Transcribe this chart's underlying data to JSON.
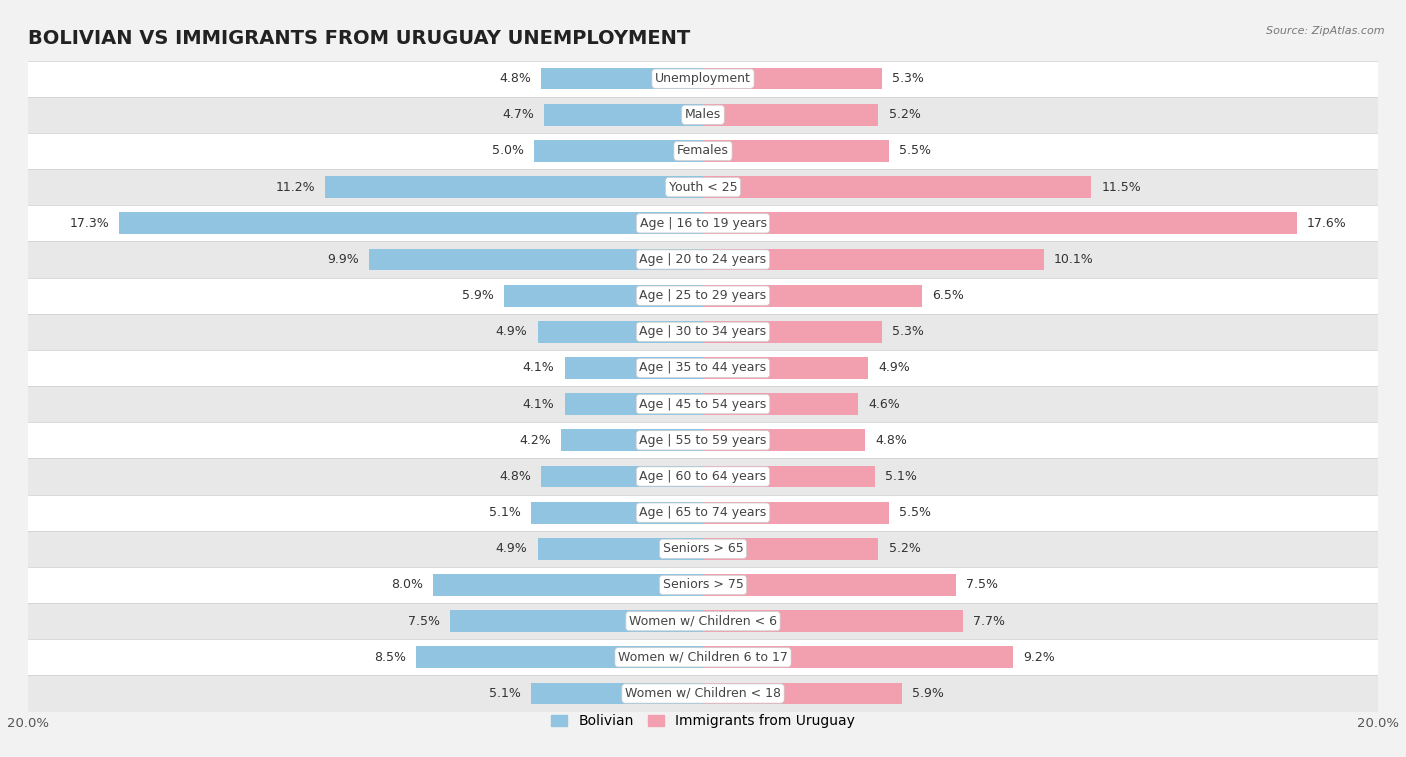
{
  "title": "BOLIVIAN VS IMMIGRANTS FROM URUGUAY UNEMPLOYMENT",
  "source": "Source: ZipAtlas.com",
  "categories": [
    "Unemployment",
    "Males",
    "Females",
    "Youth < 25",
    "Age | 16 to 19 years",
    "Age | 20 to 24 years",
    "Age | 25 to 29 years",
    "Age | 30 to 34 years",
    "Age | 35 to 44 years",
    "Age | 45 to 54 years",
    "Age | 55 to 59 years",
    "Age | 60 to 64 years",
    "Age | 65 to 74 years",
    "Seniors > 65",
    "Seniors > 75",
    "Women w/ Children < 6",
    "Women w/ Children 6 to 17",
    "Women w/ Children < 18"
  ],
  "bolivian": [
    4.8,
    4.7,
    5.0,
    11.2,
    17.3,
    9.9,
    5.9,
    4.9,
    4.1,
    4.1,
    4.2,
    4.8,
    5.1,
    4.9,
    8.0,
    7.5,
    8.5,
    5.1
  ],
  "uruguay": [
    5.3,
    5.2,
    5.5,
    11.5,
    17.6,
    10.1,
    6.5,
    5.3,
    4.9,
    4.6,
    4.8,
    5.1,
    5.5,
    5.2,
    7.5,
    7.7,
    9.2,
    5.9
  ],
  "bolivian_color": "#91c4e0",
  "uruguay_color": "#f2a0b0",
  "bar_height": 0.6,
  "max_val": 20.0,
  "bg_color": "#f2f2f2",
  "row_color_odd": "#ffffff",
  "row_color_even": "#e8e8e8",
  "title_fontsize": 14,
  "axis_fontsize": 9.5,
  "label_fontsize": 9,
  "cat_fontsize": 9,
  "legend_label_bolivian": "Bolivian",
  "legend_label_uruguay": "Immigrants from Uruguay"
}
